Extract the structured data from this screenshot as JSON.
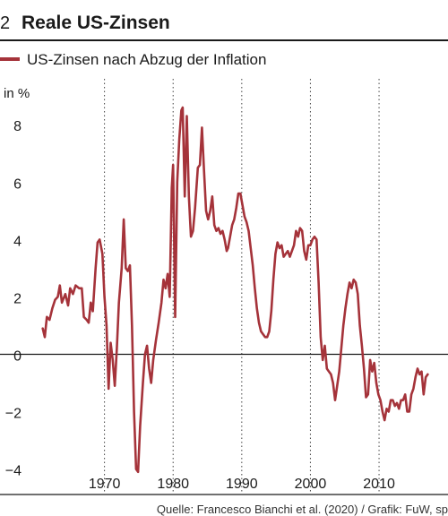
{
  "header": {
    "number": "2",
    "title": "Reale US-Zinsen"
  },
  "footer": {
    "source": "Quelle: Francesco Bianchi et al. (2020) / Grafik: FuW, sp"
  },
  "colors": {
    "series": "#a5333a",
    "rule": "#1a1a1a",
    "grid": "#444444"
  },
  "chart_data": {
    "type": "line",
    "title": "Reale US-Zinsen",
    "ylabel": "in %",
    "xlim": [
      1960,
      2019
    ],
    "ylim": [
      -4.2,
      9.6
    ],
    "x_ticks": [
      1970,
      1980,
      1990,
      2000,
      2010
    ],
    "x_tick_labels": [
      "1970",
      "1980",
      "1990",
      "2000",
      "2010"
    ],
    "y_ticks": [
      -4,
      -2,
      0,
      2,
      4,
      6,
      8
    ],
    "y_tick_labels": [
      "−4",
      "−2",
      "0",
      "2",
      "4",
      "6",
      "8"
    ],
    "grid": "vertical dotted at decade ticks",
    "zero_line": true,
    "legend": {
      "placement": "top-left"
    },
    "series": [
      {
        "name": "US-Zinsen nach Abzug der Inflation",
        "color": "#a5333a",
        "points": [
          [
            1961.0,
            0.9
          ],
          [
            1961.3,
            0.6
          ],
          [
            1961.6,
            1.3
          ],
          [
            1962.0,
            1.2
          ],
          [
            1962.4,
            1.6
          ],
          [
            1962.8,
            1.9
          ],
          [
            1963.2,
            2.0
          ],
          [
            1963.5,
            2.4
          ],
          [
            1963.8,
            1.8
          ],
          [
            1964.3,
            2.1
          ],
          [
            1964.7,
            1.7
          ],
          [
            1965.0,
            2.3
          ],
          [
            1965.4,
            2.1
          ],
          [
            1965.8,
            2.4
          ],
          [
            1966.3,
            2.3
          ],
          [
            1966.7,
            2.3
          ],
          [
            1967.0,
            1.3
          ],
          [
            1967.4,
            1.2
          ],
          [
            1967.7,
            1.1
          ],
          [
            1968.0,
            1.8
          ],
          [
            1968.3,
            1.5
          ],
          [
            1968.7,
            3.0
          ],
          [
            1969.0,
            3.9
          ],
          [
            1969.3,
            4.0
          ],
          [
            1969.7,
            3.5
          ],
          [
            1970.0,
            2.0
          ],
          [
            1970.3,
            1.0
          ],
          [
            1970.6,
            -1.2
          ],
          [
            1970.9,
            0.4
          ],
          [
            1971.2,
            -0.2
          ],
          [
            1971.5,
            -1.1
          ],
          [
            1971.8,
            0.2
          ],
          [
            1972.1,
            1.8
          ],
          [
            1972.5,
            3.0
          ],
          [
            1972.8,
            4.7
          ],
          [
            1973.1,
            3.0
          ],
          [
            1973.4,
            2.9
          ],
          [
            1973.7,
            3.1
          ],
          [
            1974.0,
            1.0
          ],
          [
            1974.3,
            -2.0
          ],
          [
            1974.6,
            -4.0
          ],
          [
            1974.9,
            -4.1
          ],
          [
            1975.2,
            -2.5
          ],
          [
            1975.6,
            -1.0
          ],
          [
            1975.9,
            0.0
          ],
          [
            1976.2,
            0.3
          ],
          [
            1976.5,
            -0.5
          ],
          [
            1976.8,
            -1.0
          ],
          [
            1977.1,
            -0.2
          ],
          [
            1977.5,
            0.5
          ],
          [
            1977.9,
            1.1
          ],
          [
            1978.3,
            1.8
          ],
          [
            1978.6,
            2.6
          ],
          [
            1978.9,
            2.3
          ],
          [
            1979.2,
            2.8
          ],
          [
            1979.5,
            2.0
          ],
          [
            1979.8,
            5.8
          ],
          [
            1980.0,
            6.6
          ],
          [
            1980.3,
            1.3
          ],
          [
            1980.6,
            6.0
          ],
          [
            1980.9,
            7.5
          ],
          [
            1981.2,
            8.5
          ],
          [
            1981.4,
            8.6
          ],
          [
            1981.7,
            5.5
          ],
          [
            1982.0,
            8.3
          ],
          [
            1982.3,
            5.5
          ],
          [
            1982.6,
            4.1
          ],
          [
            1982.9,
            4.3
          ],
          [
            1983.2,
            5.1
          ],
          [
            1983.6,
            6.5
          ],
          [
            1983.9,
            6.6
          ],
          [
            1984.2,
            7.9
          ],
          [
            1984.5,
            6.4
          ],
          [
            1984.8,
            5.0
          ],
          [
            1985.1,
            4.7
          ],
          [
            1985.4,
            5.0
          ],
          [
            1985.7,
            5.5
          ],
          [
            1986.0,
            4.5
          ],
          [
            1986.3,
            4.3
          ],
          [
            1986.6,
            4.4
          ],
          [
            1986.9,
            4.2
          ],
          [
            1987.2,
            4.3
          ],
          [
            1987.5,
            4.0
          ],
          [
            1987.8,
            3.6
          ],
          [
            1988.0,
            3.7
          ],
          [
            1988.3,
            4.1
          ],
          [
            1988.6,
            4.5
          ],
          [
            1988.9,
            4.7
          ],
          [
            1989.2,
            5.1
          ],
          [
            1989.5,
            5.6
          ],
          [
            1989.8,
            5.6
          ],
          [
            1990.1,
            5.2
          ],
          [
            1990.4,
            4.8
          ],
          [
            1990.7,
            4.6
          ],
          [
            1991.0,
            4.3
          ],
          [
            1991.3,
            3.7
          ],
          [
            1991.6,
            3.1
          ],
          [
            1991.9,
            2.3
          ],
          [
            1992.2,
            1.6
          ],
          [
            1992.5,
            1.1
          ],
          [
            1992.8,
            0.8
          ],
          [
            1993.1,
            0.7
          ],
          [
            1993.4,
            0.6
          ],
          [
            1993.7,
            0.6
          ],
          [
            1994.0,
            0.8
          ],
          [
            1994.3,
            1.5
          ],
          [
            1994.6,
            2.6
          ],
          [
            1994.9,
            3.5
          ],
          [
            1995.2,
            3.9
          ],
          [
            1995.5,
            3.7
          ],
          [
            1995.8,
            3.8
          ],
          [
            1996.1,
            3.4
          ],
          [
            1996.4,
            3.5
          ],
          [
            1996.7,
            3.6
          ],
          [
            1997.0,
            3.4
          ],
          [
            1997.3,
            3.6
          ],
          [
            1997.6,
            3.8
          ],
          [
            1997.9,
            4.3
          ],
          [
            1998.2,
            4.1
          ],
          [
            1998.5,
            4.4
          ],
          [
            1998.8,
            4.3
          ],
          [
            1999.1,
            3.6
          ],
          [
            1999.4,
            3.3
          ],
          [
            1999.7,
            3.8
          ],
          [
            2000.0,
            3.8
          ],
          [
            2000.3,
            4.0
          ],
          [
            2000.6,
            4.1
          ],
          [
            2000.9,
            4.0
          ],
          [
            2001.2,
            2.5
          ],
          [
            2001.5,
            0.6
          ],
          [
            2001.8,
            -0.2
          ],
          [
            2002.1,
            0.3
          ],
          [
            2002.4,
            -0.5
          ],
          [
            2002.7,
            -0.6
          ],
          [
            2003.0,
            -0.7
          ],
          [
            2003.3,
            -1.0
          ],
          [
            2003.6,
            -1.6
          ],
          [
            2003.9,
            -1.1
          ],
          [
            2004.2,
            -0.6
          ],
          [
            2004.5,
            0.2
          ],
          [
            2004.8,
            1.0
          ],
          [
            2005.1,
            1.6
          ],
          [
            2005.4,
            2.1
          ],
          [
            2005.7,
            2.5
          ],
          [
            2006.0,
            2.3
          ],
          [
            2006.3,
            2.6
          ],
          [
            2006.6,
            2.5
          ],
          [
            2006.9,
            2.1
          ],
          [
            2007.2,
            1.0
          ],
          [
            2007.5,
            0.3
          ],
          [
            2007.8,
            -0.5
          ],
          [
            2008.1,
            -1.5
          ],
          [
            2008.4,
            -1.4
          ],
          [
            2008.7,
            -0.2
          ],
          [
            2009.0,
            -0.6
          ],
          [
            2009.3,
            -0.3
          ],
          [
            2009.6,
            -1.0
          ],
          [
            2009.9,
            -1.4
          ],
          [
            2010.2,
            -1.6
          ],
          [
            2010.5,
            -2.0
          ],
          [
            2010.8,
            -2.3
          ],
          [
            2011.1,
            -1.9
          ],
          [
            2011.4,
            -2.0
          ],
          [
            2011.7,
            -1.6
          ],
          [
            2012.0,
            -1.6
          ],
          [
            2012.3,
            -1.8
          ],
          [
            2012.6,
            -1.7
          ],
          [
            2012.9,
            -1.9
          ],
          [
            2013.2,
            -1.6
          ],
          [
            2013.5,
            -1.6
          ],
          [
            2013.8,
            -1.4
          ],
          [
            2014.1,
            -2.0
          ],
          [
            2014.4,
            -2.0
          ],
          [
            2014.7,
            -1.4
          ],
          [
            2015.0,
            -1.2
          ],
          [
            2015.3,
            -0.8
          ],
          [
            2015.6,
            -0.5
          ],
          [
            2015.9,
            -0.7
          ],
          [
            2016.2,
            -0.6
          ],
          [
            2016.5,
            -1.4
          ],
          [
            2016.8,
            -0.8
          ],
          [
            2017.1,
            -0.7
          ]
        ]
      }
    ]
  }
}
